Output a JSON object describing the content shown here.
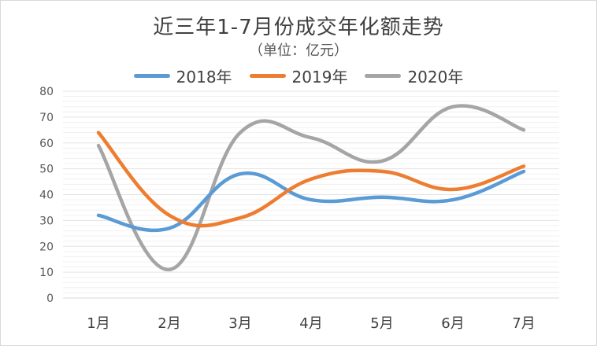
{
  "chart_data": {
    "type": "line",
    "title": "近三年1-7月份成交年化额走势",
    "subtitle": "（单位：亿元）",
    "categories": [
      "1月",
      "2月",
      "3月",
      "4月",
      "5月",
      "6月",
      "7月"
    ],
    "series": [
      {
        "name": "2018年",
        "color": "#5b9bd5",
        "values": [
          32,
          27,
          48,
          38,
          39,
          38,
          49
        ]
      },
      {
        "name": "2019年",
        "color": "#ed7d31",
        "values": [
          64,
          32,
          31,
          46,
          49,
          42,
          51
        ]
      },
      {
        "name": "2020年",
        "color": "#a5a5a5",
        "values": [
          59,
          11,
          64,
          62,
          53,
          74,
          65
        ]
      }
    ],
    "ylim": [
      0,
      80
    ],
    "yticks": [
      0,
      10,
      20,
      30,
      40,
      50,
      60,
      70,
      80
    ],
    "grid": true,
    "legend_position": "top",
    "smooth": true
  }
}
